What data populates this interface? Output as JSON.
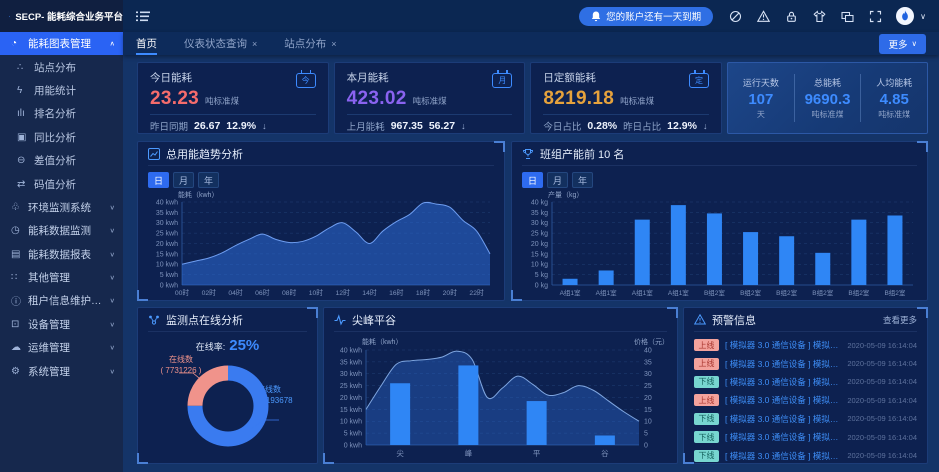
{
  "app": {
    "logo_text": "SECP- 能耗综合业务平台",
    "notice": "您的账户还有一天到期",
    "more_label": "更多"
  },
  "header_icons": [
    "circle-slash-icon",
    "warning-icon",
    "lock-icon",
    "theme-shirt-icon",
    "multi-window-icon",
    "fullscreen-icon"
  ],
  "sidebar": {
    "items": [
      {
        "label": "能耗图表管理",
        "icon": "pie-chart-icon",
        "type": "group",
        "active": true,
        "expanded": true
      },
      {
        "label": "站点分布",
        "icon": "scatter-icon",
        "type": "sub"
      },
      {
        "label": "用能统计",
        "icon": "lightning-icon",
        "type": "sub"
      },
      {
        "label": "排名分析",
        "icon": "bar-rank-icon",
        "type": "sub"
      },
      {
        "label": "同比分析",
        "icon": "compare-icon",
        "type": "sub"
      },
      {
        "label": "差值分析",
        "icon": "minus-circle-icon",
        "type": "sub"
      },
      {
        "label": "码值分析",
        "icon": "swap-icon",
        "type": "sub"
      },
      {
        "label": "环境监测系统",
        "icon": "leaf-icon",
        "type": "group"
      },
      {
        "label": "能耗数据监测",
        "icon": "gauge-icon",
        "type": "group"
      },
      {
        "label": "能耗数据报表",
        "icon": "report-icon",
        "type": "group"
      },
      {
        "label": "其他管理",
        "icon": "grid-icon",
        "type": "group"
      },
      {
        "label": "租户信息维护管理",
        "icon": "info-icon",
        "type": "group"
      },
      {
        "label": "设备管理",
        "icon": "device-icon",
        "type": "group"
      },
      {
        "label": "运维管理",
        "icon": "cloud-icon",
        "type": "group"
      },
      {
        "label": "系统管理",
        "icon": "gear-icon",
        "type": "group"
      }
    ]
  },
  "tabs": [
    {
      "label": "首页",
      "active": true,
      "closable": false
    },
    {
      "label": "仪表状态查询",
      "active": false,
      "closable": true
    },
    {
      "label": "站点分布",
      "active": false,
      "closable": true
    }
  ],
  "period_tabs": [
    "日",
    "月",
    "年"
  ],
  "stat_cards": [
    {
      "title": "今日能耗",
      "value": "23.23",
      "unit": "吨标准煤",
      "value_color": "#f56c6c",
      "badge": "今",
      "footer": [
        {
          "label": "昨日同期",
          "value": "26.67"
        },
        {
          "label": "",
          "value": "12.9%",
          "arrow": true
        }
      ]
    },
    {
      "title": "本月能耗",
      "value": "423.02",
      "unit": "吨标准煤",
      "value_color": "#8a63f0",
      "badge": "月",
      "footer": [
        {
          "label": "上月能耗",
          "value": "967.35"
        },
        {
          "label": "",
          "value": "56.27",
          "arrow": true
        }
      ]
    },
    {
      "title": "日定额能耗",
      "value": "8219.18",
      "unit": "吨标准煤",
      "value_color": "#e6a23c",
      "badge": "定",
      "footer": [
        {
          "label": "今日占比",
          "value": "0.28%"
        },
        {
          "label": "昨日占比",
          "value": "12.9%",
          "arrow": true
        }
      ]
    }
  ],
  "summary_stats": [
    {
      "label": "运行天数",
      "value": "107",
      "unit": "天"
    },
    {
      "label": "总能耗",
      "value": "9690.3",
      "unit": "吨标准煤"
    },
    {
      "label": "人均能耗",
      "value": "4.85",
      "unit": "吨标准煤"
    }
  ],
  "chart_data": [
    {
      "id": "energy_trend",
      "type": "area",
      "title": "总用能趋势分析",
      "ylabel": "能耗（kwh）",
      "y_tick_suffix": " kwh",
      "ylim": [
        0,
        40
      ],
      "y_step": 5,
      "grid": true,
      "x_labels": [
        "00时",
        "02时",
        "04时",
        "06时",
        "08时",
        "10时",
        "12时",
        "14时",
        "16时",
        "18时",
        "20时",
        "22时"
      ],
      "values": [
        10,
        11.5,
        13,
        15.5,
        19,
        22,
        24.5,
        22,
        20.5,
        21,
        23.5,
        27.5,
        30,
        25.5,
        20,
        26,
        30.5,
        34,
        39.5,
        39,
        37.5,
        31,
        26,
        15
      ]
    },
    {
      "id": "team_output",
      "type": "bar",
      "title": "班组产能前 10 名",
      "ylabel": "产量（kg）",
      "y_tick_suffix": " kg",
      "ylim": [
        0,
        40
      ],
      "y_step": 5,
      "grid": true,
      "categories": [
        "A组1室",
        "A组1室",
        "A组1室",
        "A组1室",
        "B组2室",
        "B组2室",
        "B组2室",
        "B组2室",
        "B组2室",
        "B组2室"
      ],
      "values": [
        3,
        7,
        31.5,
        38.5,
        34.5,
        25.5,
        23.5,
        15.5,
        31.5,
        33.5
      ]
    },
    {
      "id": "online_analysis",
      "type": "pie",
      "title": "监测点在线分析",
      "rate_label": "在线率:",
      "rate_value": "25%",
      "slices": [
        {
          "label": "在线数",
          "display": "( 7731226 )",
          "value": 7731226,
          "color": "#f0938b"
        },
        {
          "label": "离线数",
          "display": "23193678",
          "value": 23193678,
          "color": "#3a7bf0"
        }
      ]
    },
    {
      "id": "peak_valley",
      "type": "combo",
      "title": "尖峰平谷",
      "ylabel_left": "能耗（kwh）",
      "ylabel_right": "价格（元）",
      "y_tick_suffix": " kwh",
      "ylim": [
        0,
        40
      ],
      "y_step": 5,
      "grid": true,
      "categories": [
        "尖",
        "峰",
        "平",
        "谷"
      ],
      "bar_values": [
        26,
        33.5,
        18.5,
        4
      ],
      "line_values": [
        15,
        25,
        34,
        35.5,
        36,
        37,
        39.5,
        36,
        20,
        24,
        29,
        25.5,
        21,
        22,
        25,
        23,
        18.5,
        14,
        10
      ]
    }
  ],
  "alerts": {
    "title": "预警信息",
    "more": "查看更多",
    "rows": [
      {
        "status": "上线",
        "text": "[ 模拟器 3.0 通信设备 ] 模拟器 3.0...",
        "time": "2020-05-09 16:14:04"
      },
      {
        "status": "上线",
        "text": "[ 模拟器 3.0 通信设备 ] 模拟器 3.0...",
        "time": "2020-05-09 16:14:04"
      },
      {
        "status": "下线",
        "text": "[ 模拟器 3.0 通信设备 ] 模拟器 3.0...",
        "time": "2020-05-09 16:14:04"
      },
      {
        "status": "上线",
        "text": "[ 模拟器 3.0 通信设备 ] 模拟器 3.0...",
        "time": "2020-05-09 16:14:04"
      },
      {
        "status": "下线",
        "text": "[ 模拟器 3.0 通信设备 ] 模拟器 3.0...",
        "time": "2020-05-09 16:14:04"
      },
      {
        "status": "下线",
        "text": "[ 模拟器 3.0 通信设备 ] 模拟器 3.0...",
        "time": "2020-05-09 16:14:04"
      },
      {
        "status": "下线",
        "text": "[ 模拟器 3.0 通信设备 ] 模拟器 3.0...",
        "time": "2020-05-09 16:14:04"
      }
    ]
  },
  "colors": {
    "accent": "#2e6bf0",
    "chart_blue": "#2f86f5",
    "area_fill": "rgba(46,108,214,0.55)",
    "salmon": "#f0938b",
    "value_red": "#f56c6c",
    "value_purple": "#8a63f0",
    "value_orange": "#e6a23c",
    "stat_blue": "#3d8bff"
  }
}
